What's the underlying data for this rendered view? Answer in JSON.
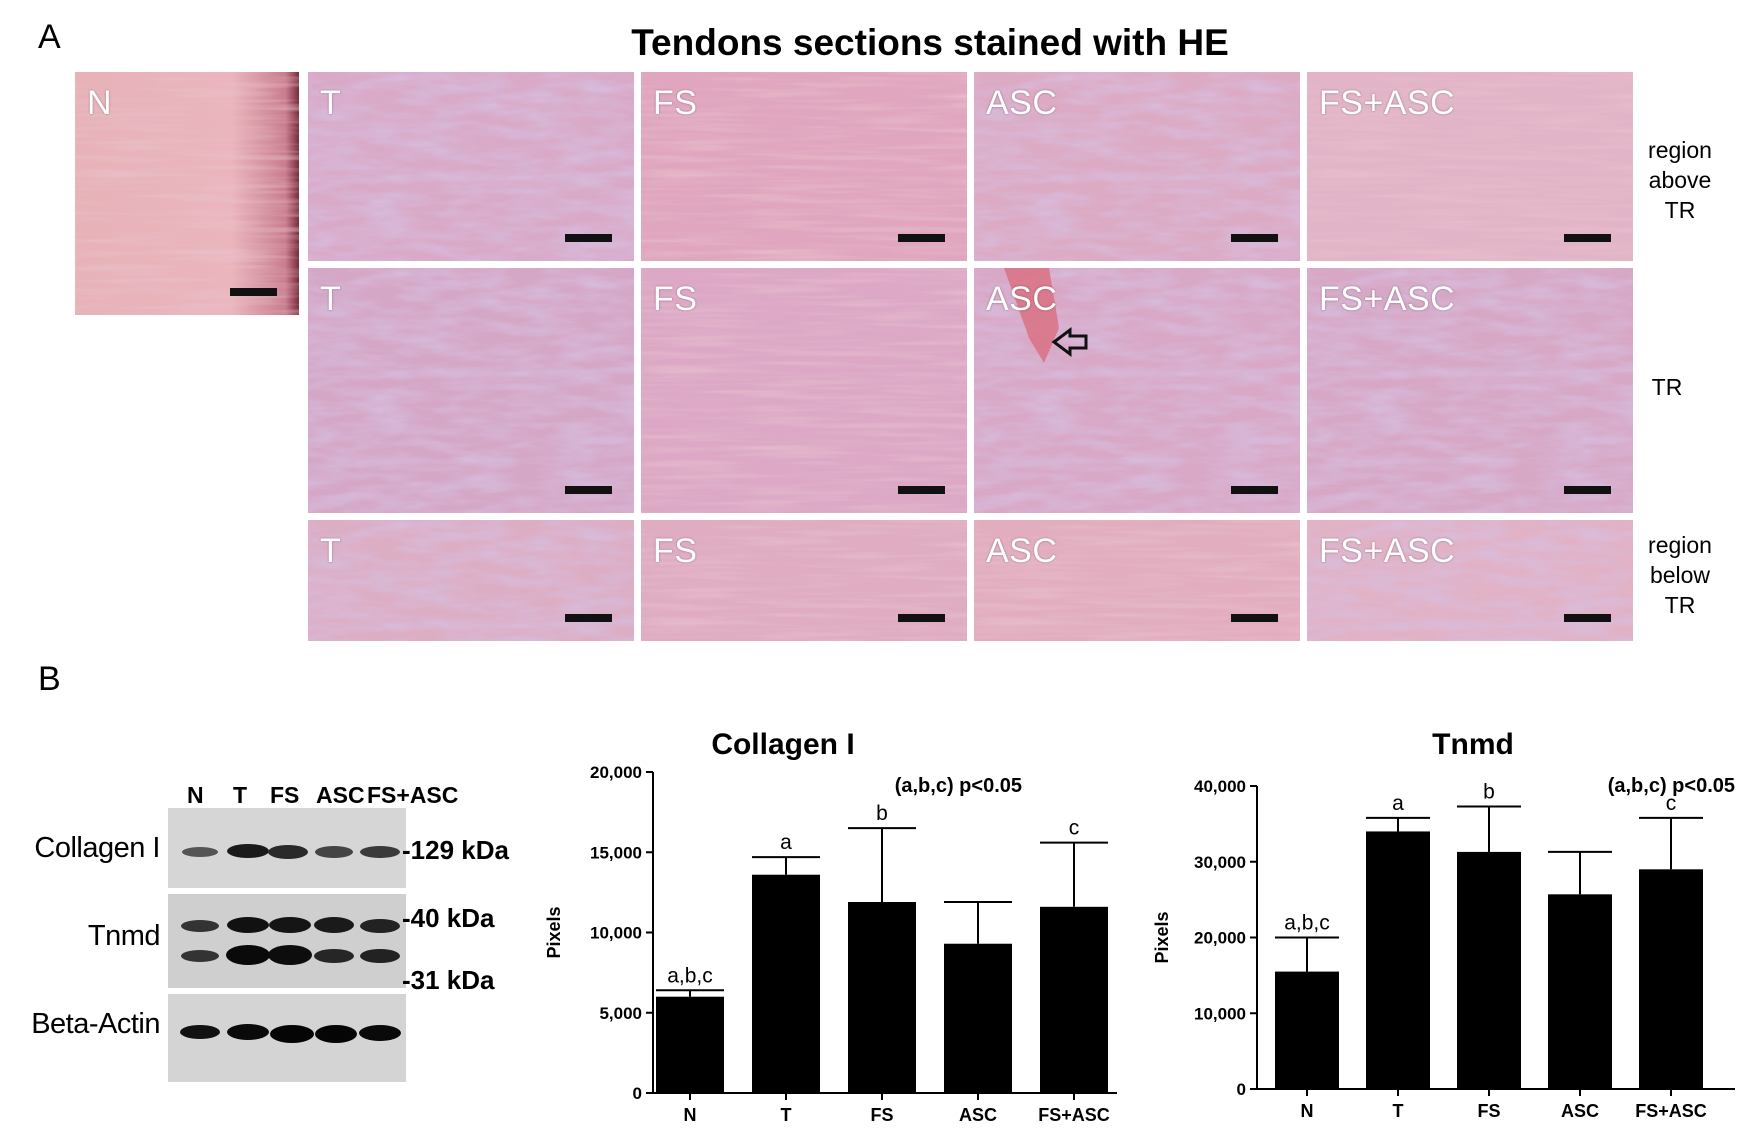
{
  "panel_a": {
    "letter": "A",
    "title": "Tendons sections stained with HE",
    "normal_label": "N",
    "groups": [
      "T",
      "FS",
      "ASC",
      "FS+ASC"
    ],
    "rows": [
      {
        "label_lines": [
          "region",
          "above",
          "TR"
        ]
      },
      {
        "label_lines": [
          "TR"
        ]
      },
      {
        "label_lines": [
          "region",
          "below",
          "TR"
        ]
      }
    ]
  },
  "panel_b": {
    "letter": "B",
    "blot": {
      "lanes": [
        "N",
        "T",
        "FS",
        "ASC",
        "FS+ASC"
      ],
      "proteins": [
        "Collagen I",
        "Tnmd",
        "Beta-Actin"
      ],
      "markers": [
        "-129 kDa",
        "-40 kDa",
        "-31 kDa"
      ]
    }
  },
  "colors": {
    "he_pink": "#e5a9b6",
    "he_purple": "#b28bbd",
    "bar": "#000000"
  },
  "chart_data": [
    {
      "type": "bar",
      "title": "Collagen I",
      "ylabel": "Pixels",
      "xlabel": "",
      "categories": [
        "N",
        "T",
        "FS",
        "ASC",
        "FS+ASC"
      ],
      "values": [
        6000,
        13600,
        11900,
        9300,
        11600
      ],
      "errors": [
        400,
        1100,
        4600,
        2600,
        4000
      ],
      "annotations": [
        "a,b,c",
        "a",
        "b",
        "",
        "c"
      ],
      "note": "(a,b,c) p<0.05",
      "ylim": [
        0,
        20000
      ],
      "yticks": [
        "0",
        "5,000",
        "10,000",
        "15,000",
        "20,000"
      ]
    },
    {
      "type": "bar",
      "title": "Tnmd",
      "ylabel": "Pixels",
      "xlabel": "",
      "categories": [
        "N",
        "T",
        "FS",
        "ASC",
        "FS+ASC"
      ],
      "values": [
        15500,
        34000,
        31300,
        25700,
        29000
      ],
      "errors": [
        4500,
        1800,
        6000,
        5600,
        6800
      ],
      "annotations": [
        "a,b,c",
        "a",
        "b",
        "",
        "c"
      ],
      "note": "(a,b,c) p<0.05",
      "ylim": [
        0,
        40000
      ],
      "yticks": [
        "0",
        "10,000",
        "20,000",
        "30,000",
        "40,000"
      ]
    }
  ]
}
